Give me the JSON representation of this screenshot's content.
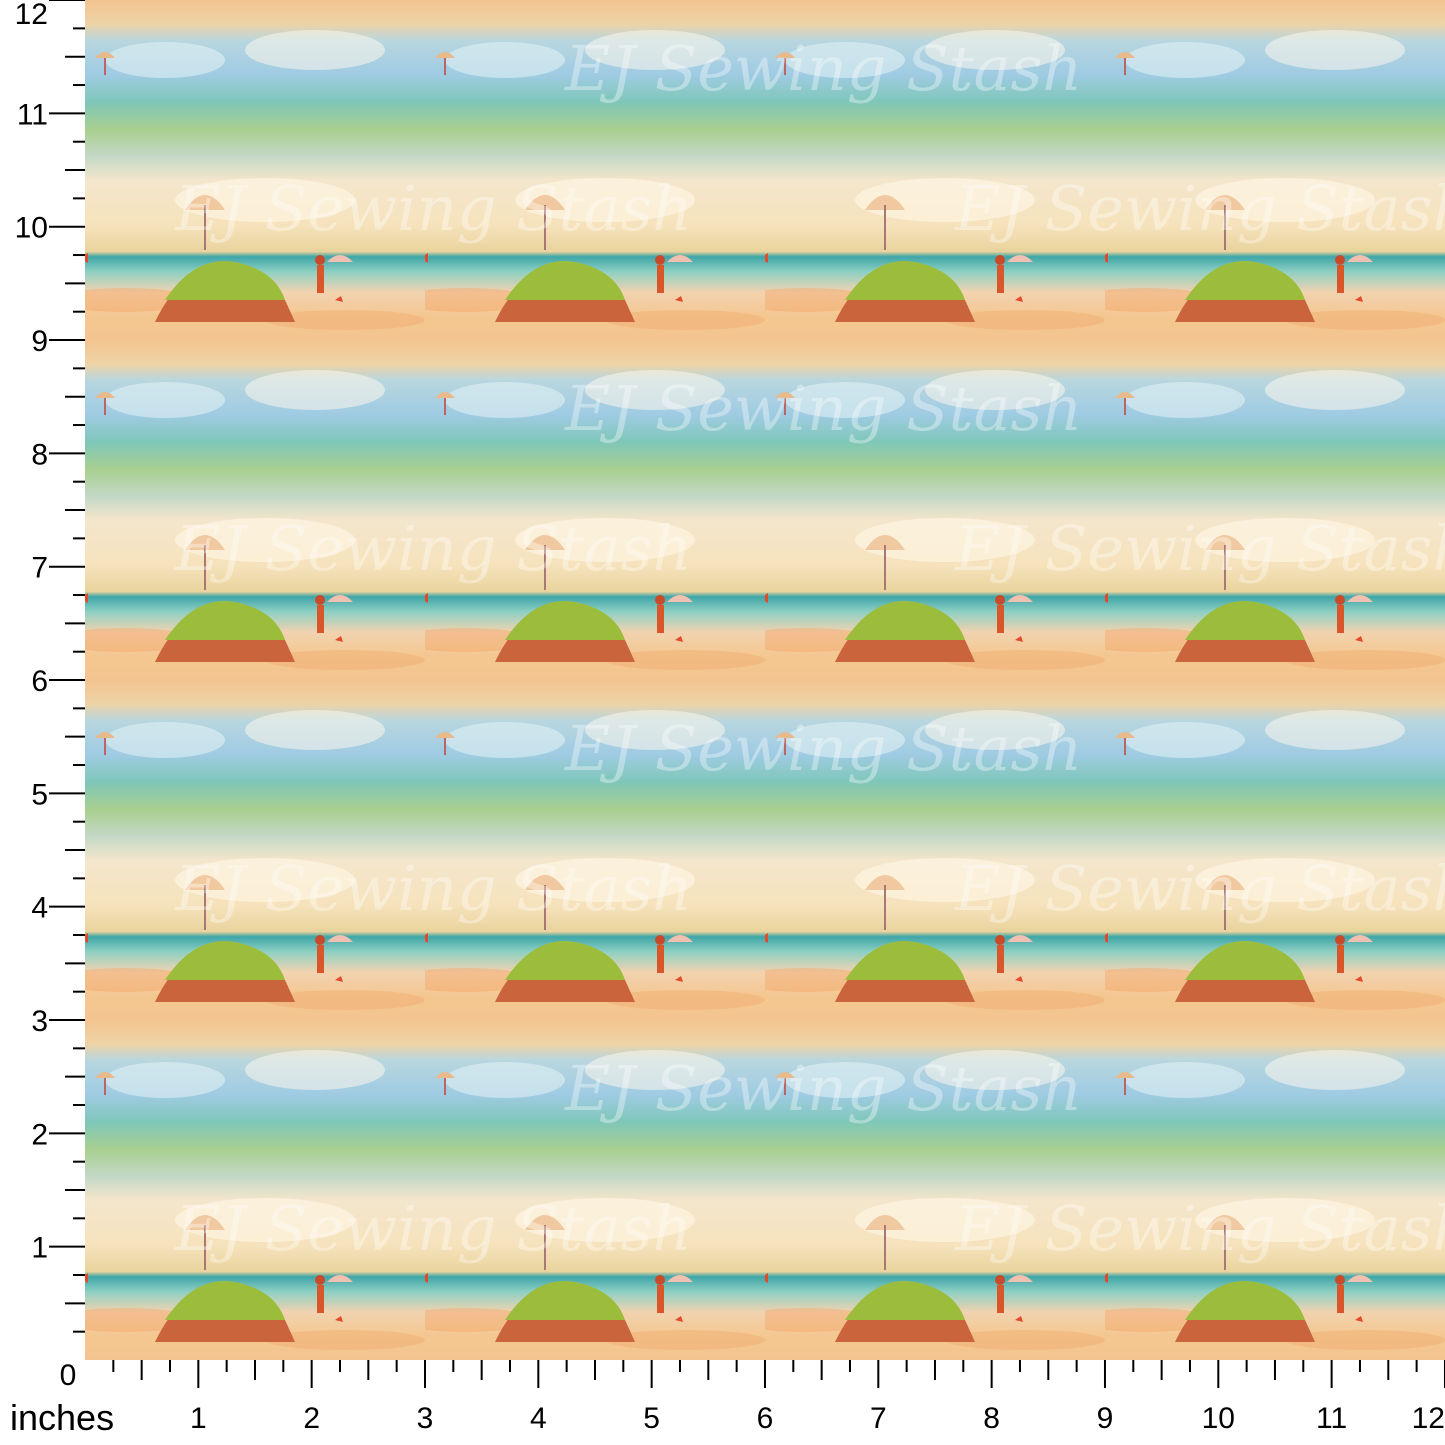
{
  "preview": {
    "pattern": "painted beach scene with umbrellas, grassy dune and child with parasol",
    "watermark": "EJ Sewing Stash",
    "colors": {
      "sky": "#a9cde0",
      "sea": "#5bbcb4",
      "sand": "#f2c48e",
      "cloud": "#f6ead0",
      "grass": "#9cbd3c",
      "accent": "#d9552a"
    }
  },
  "ruler": {
    "unit_label": "inches",
    "origin_label": "0",
    "x_labels": [
      "1",
      "2",
      "3",
      "4",
      "5",
      "6",
      "7",
      "8",
      "9",
      "10",
      "11",
      "12"
    ],
    "y_labels": [
      "1",
      "2",
      "3",
      "4",
      "5",
      "6",
      "7",
      "8",
      "9",
      "10",
      "11",
      "12"
    ]
  }
}
